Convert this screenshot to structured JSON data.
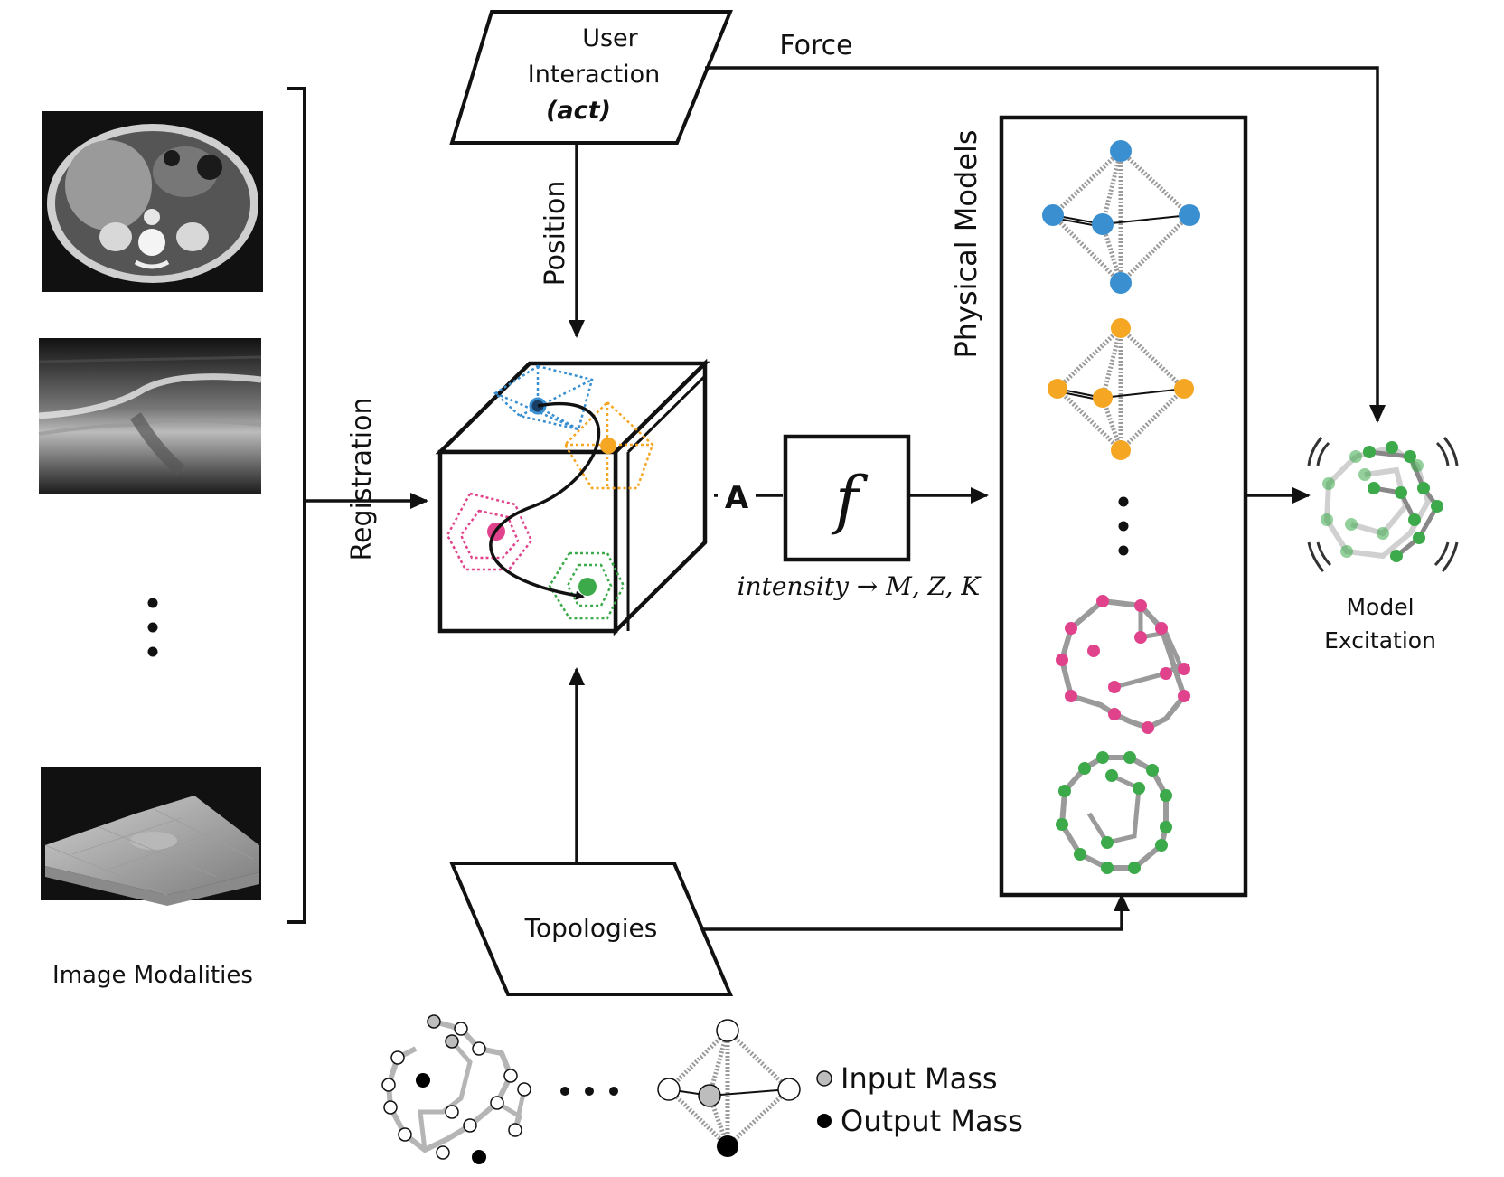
{
  "nodes": {
    "user_interaction": {
      "line1": "User",
      "line2": "Interaction",
      "line3": "(act)"
    },
    "topologies": {
      "label": "Topologies"
    },
    "function_box": {
      "symbol": "f",
      "caption": "intensity → M, Z, K"
    },
    "physical_models": {
      "title": "Physical Models"
    },
    "model_excitation": {
      "line1": "Model",
      "line2": "Excitation"
    },
    "image_modalities": {
      "caption": "Image Modalities"
    }
  },
  "edges": {
    "force": "Force",
    "position": "Position",
    "registration": "Registration",
    "volume_output": "A"
  },
  "legend": {
    "input_mass": "Input Mass",
    "output_mass": "Output Mass"
  },
  "colors": {
    "blue": "#3a8fd0",
    "orange": "#f5a623",
    "pink": "#e0428c",
    "green": "#3caa4a",
    "spring": "#9a9a9a",
    "input_mass": "#bdbdbd",
    "output_mass": "#000000"
  }
}
